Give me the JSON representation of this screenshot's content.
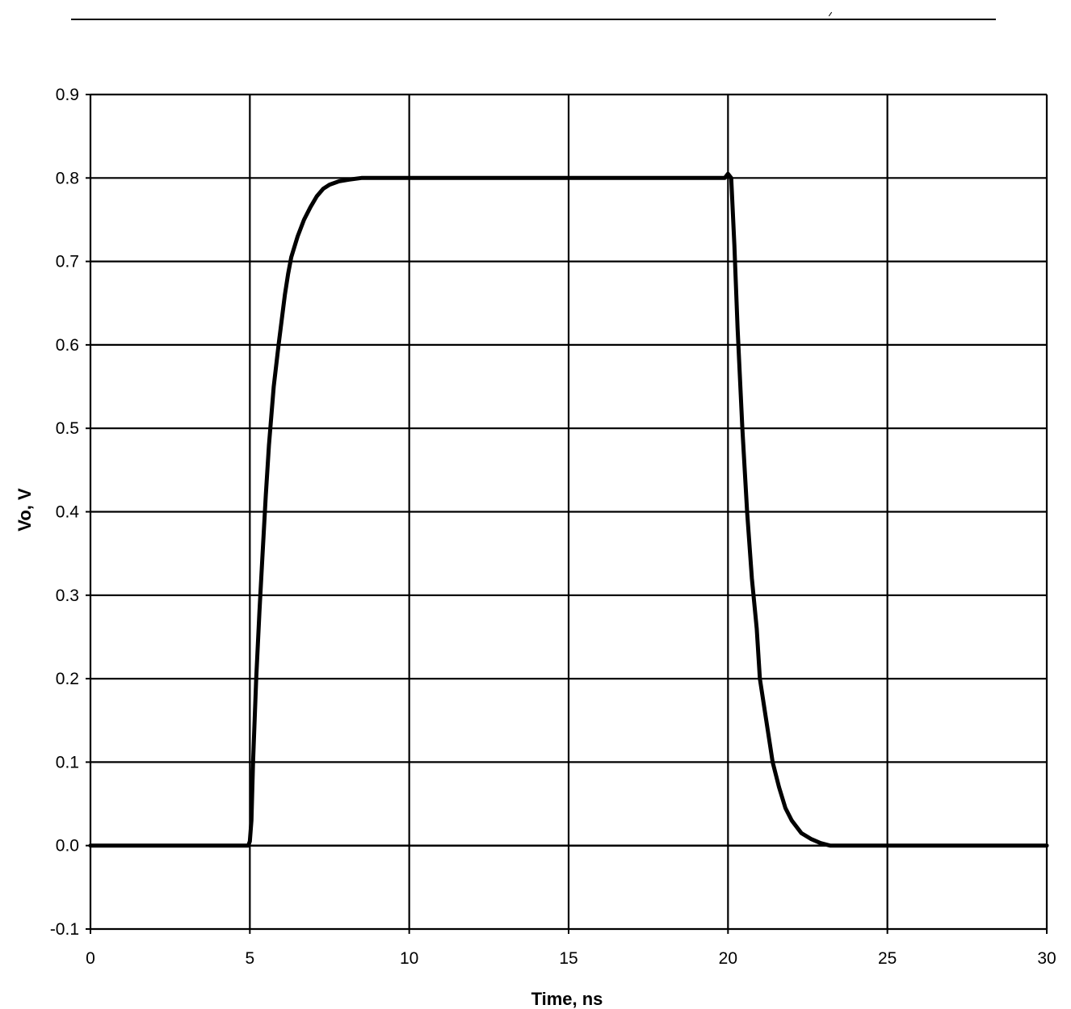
{
  "chart_data": {
    "type": "line",
    "title": "",
    "xlabel": "Time, ns",
    "ylabel": "Vo, V",
    "xlim": [
      0,
      30
    ],
    "ylim": [
      -0.1,
      0.9
    ],
    "x_ticks": [
      "0",
      "5",
      "10",
      "15",
      "20",
      "25",
      "30"
    ],
    "y_ticks": [
      "0.9",
      "0.8",
      "0.7",
      "0.6",
      "0.5",
      "0.4",
      "0.3",
      "0.2",
      "0.1",
      "0.0",
      "-0.1"
    ],
    "grid": true,
    "legend": "none",
    "series": [
      {
        "color": "#000000",
        "x": [
          0,
          4.95,
          5.0,
          5.05,
          5.1,
          5.2,
          5.3,
          5.4,
          5.5,
          5.6,
          5.75,
          5.9,
          6.0,
          6.1,
          6.2,
          6.3,
          6.5,
          6.7,
          6.9,
          7.1,
          7.3,
          7.5,
          7.8,
          8.1,
          8.5,
          9.0,
          10,
          15,
          19.9,
          20.0,
          20.1,
          20.2,
          20.3,
          20.45,
          20.6,
          20.75,
          20.9,
          21.0,
          21.2,
          21.4,
          21.6,
          21.8,
          22.0,
          22.3,
          22.6,
          22.9,
          23.2,
          25,
          30
        ],
        "y": [
          0,
          0,
          0.005,
          0.03,
          0.1,
          0.2,
          0.28,
          0.35,
          0.42,
          0.48,
          0.55,
          0.6,
          0.63,
          0.66,
          0.685,
          0.705,
          0.73,
          0.75,
          0.765,
          0.778,
          0.787,
          0.792,
          0.796,
          0.798,
          0.8,
          0.8,
          0.8,
          0.8,
          0.8,
          0.805,
          0.8,
          0.72,
          0.62,
          0.5,
          0.4,
          0.32,
          0.26,
          0.2,
          0.15,
          0.1,
          0.07,
          0.045,
          0.03,
          0.015,
          0.008,
          0.003,
          0,
          0,
          0
        ]
      }
    ]
  }
}
